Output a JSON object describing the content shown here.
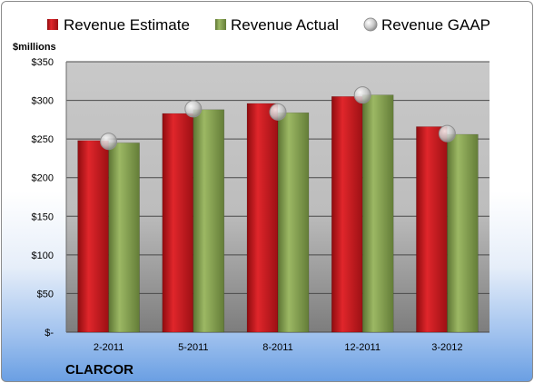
{
  "chart_data": {
    "type": "bar",
    "title": "",
    "company": "CLARCOR",
    "unit_label": "$millions",
    "categories": [
      "2-2011",
      "5-2011",
      "8-2011",
      "12-2011",
      "3-2012"
    ],
    "y_tick_labels": [
      "$-",
      "$50",
      "$100",
      "$150",
      "$200",
      "$250",
      "$300",
      "$350"
    ],
    "ylim": [
      0,
      350
    ],
    "y_tick_step": 50,
    "grid": true,
    "legend_position": "top",
    "series": [
      {
        "name": "Revenue Estimate",
        "kind": "bar",
        "color": "#c0161b",
        "values": [
          248,
          283,
          296,
          305,
          266
        ]
      },
      {
        "name": "Revenue Actual",
        "kind": "bar",
        "color": "#7f9a48",
        "values": [
          245,
          288,
          284,
          307,
          256
        ]
      },
      {
        "name": "Revenue GAAP",
        "kind": "marker",
        "color": "#c8c8c8",
        "values": [
          247,
          289,
          285,
          307,
          257
        ]
      }
    ]
  }
}
